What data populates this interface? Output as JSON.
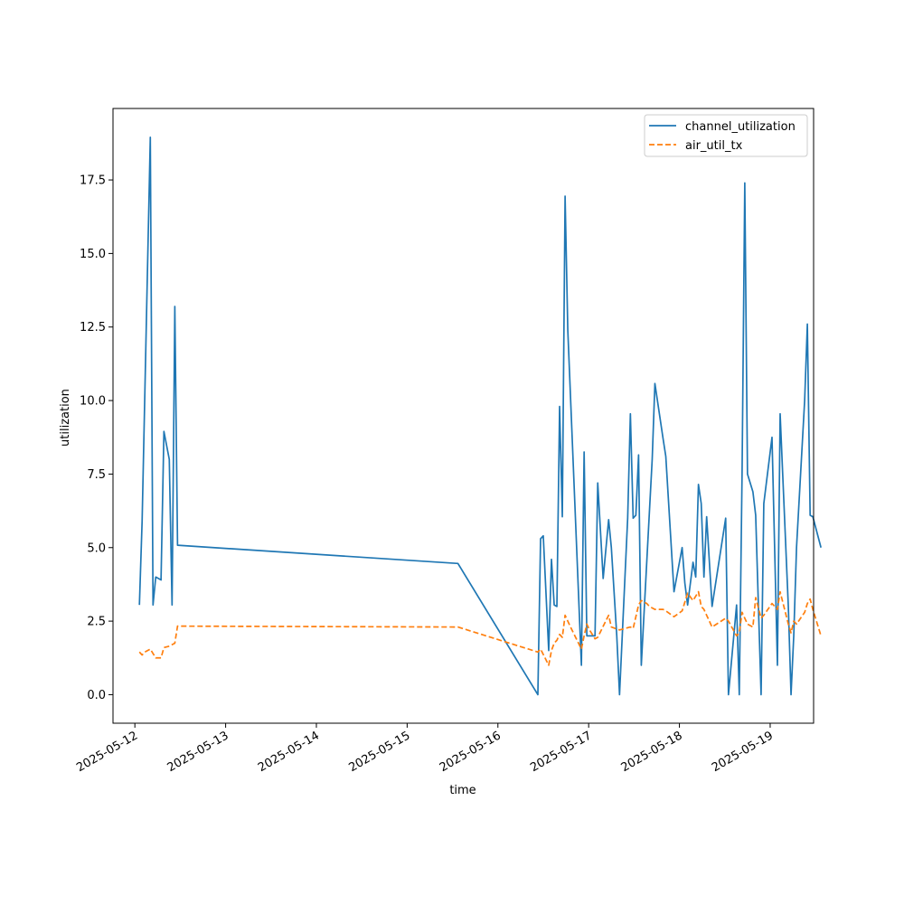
{
  "chart_data": {
    "type": "line",
    "title": "",
    "xlabel": "time",
    "ylabel": "utilization",
    "xlim": [
      "2025-05-11 18:13",
      "2025-05-19 11:29"
    ],
    "ylim": [
      -0.97,
      19.93
    ],
    "x_ticks": [
      "2025-05-12",
      "2025-05-13",
      "2025-05-14",
      "2025-05-15",
      "2025-05-16",
      "2025-05-17",
      "2025-05-18",
      "2025-05-19"
    ],
    "y_ticks": [
      "0.0",
      "2.5",
      "5.0",
      "7.5",
      "10.0",
      "12.5",
      "15.0",
      "17.5"
    ],
    "grid": false,
    "legend_position": "upper right",
    "series": [
      {
        "name": "channel_utilization",
        "color": "#1f77b4",
        "style": "solid",
        "points": [
          [
            "2025-05-12 01:12",
            3.05
          ],
          [
            "2025-05-12 01:55",
            5.9
          ],
          [
            "2025-05-12 04:05",
            18.95
          ],
          [
            "2025-05-12 04:48",
            3.05
          ],
          [
            "2025-05-12 05:31",
            4.0
          ],
          [
            "2025-05-12 06:55",
            3.9
          ],
          [
            "2025-05-12 07:41",
            8.95
          ],
          [
            "2025-05-12 09:06",
            8.0
          ],
          [
            "2025-05-12 09:50",
            3.05
          ],
          [
            "2025-05-12 10:34",
            13.2
          ],
          [
            "2025-05-12 11:17",
            5.08
          ],
          [
            "2025-05-15 13:26",
            4.46
          ],
          [
            "2025-05-16 10:34",
            0.0
          ],
          [
            "2025-05-16 11:17",
            5.3
          ],
          [
            "2025-05-16 12:00",
            5.4
          ],
          [
            "2025-05-16 13:26",
            1.5
          ],
          [
            "2025-05-16 14:10",
            4.6
          ],
          [
            "2025-05-16 14:53",
            3.05
          ],
          [
            "2025-05-16 15:36",
            3.0
          ],
          [
            "2025-05-16 16:19",
            9.8
          ],
          [
            "2025-05-16 17:02",
            6.05
          ],
          [
            "2025-05-16 17:46",
            16.95
          ],
          [
            "2025-05-16 18:29",
            12.4
          ],
          [
            "2025-05-16 22:05",
            1.0
          ],
          [
            "2025-05-16 22:48",
            8.25
          ],
          [
            "2025-05-16 23:31",
            2.0
          ],
          [
            "2025-05-17 01:41",
            2.0
          ],
          [
            "2025-05-17 02:24",
            7.2
          ],
          [
            "2025-05-17 03:50",
            3.95
          ],
          [
            "2025-05-17 05:17",
            5.95
          ],
          [
            "2025-05-17 06:00",
            5.0
          ],
          [
            "2025-05-17 07:26",
            2.0
          ],
          [
            "2025-05-17 08:10",
            0.0
          ],
          [
            "2025-05-17 10:19",
            6.0
          ],
          [
            "2025-05-17 11:02",
            9.55
          ],
          [
            "2025-05-17 11:46",
            6.0
          ],
          [
            "2025-05-17 12:29",
            6.1
          ],
          [
            "2025-05-17 13:12",
            8.15
          ],
          [
            "2025-05-17 13:55",
            1.0
          ],
          [
            "2025-05-17 16:48",
            8.0
          ],
          [
            "2025-05-17 17:31",
            10.58
          ],
          [
            "2025-05-17 19:41",
            8.7
          ],
          [
            "2025-05-17 20:24",
            8.1
          ],
          [
            "2025-05-17 22:34",
            3.5
          ],
          [
            "2025-05-18 00:43",
            5.0
          ],
          [
            "2025-05-18 01:26",
            3.8
          ],
          [
            "2025-05-18 02:10",
            3.05
          ],
          [
            "2025-05-18 03:36",
            4.5
          ],
          [
            "2025-05-18 04:19",
            4.0
          ],
          [
            "2025-05-18 05:02",
            7.15
          ],
          [
            "2025-05-18 05:46",
            6.5
          ],
          [
            "2025-05-18 06:29",
            4.0
          ],
          [
            "2025-05-18 07:12",
            6.05
          ],
          [
            "2025-05-18 08:38",
            3.0
          ],
          [
            "2025-05-18 12:14",
            6.0
          ],
          [
            "2025-05-18 12:58",
            0.0
          ],
          [
            "2025-05-18 15:07",
            3.05
          ],
          [
            "2025-05-18 15:50",
            0.0
          ],
          [
            "2025-05-18 16:34",
            7.5
          ],
          [
            "2025-05-18 17:17",
            17.4
          ],
          [
            "2025-05-18 18:00",
            7.5
          ],
          [
            "2025-05-18 19:26",
            6.9
          ],
          [
            "2025-05-18 20:10",
            6.1
          ],
          [
            "2025-05-18 21:36",
            0.0
          ],
          [
            "2025-05-18 22:19",
            6.5
          ],
          [
            "2025-05-19 00:29",
            8.75
          ],
          [
            "2025-05-19 01:55",
            1.0
          ],
          [
            "2025-05-19 02:38",
            9.55
          ],
          [
            "2025-05-19 04:48",
            3.0
          ],
          [
            "2025-05-19 05:31",
            0.0
          ],
          [
            "2025-05-19 06:14",
            2.0
          ],
          [
            "2025-05-19 06:58",
            5.0
          ],
          [
            "2025-05-19 09:07",
            10.0
          ],
          [
            "2025-05-19 09:50",
            12.6
          ],
          [
            "2025-05-19 10:34",
            6.1
          ],
          [
            "2025-05-19 11:17",
            6.05
          ],
          [
            "2025-05-19 13:26",
            5.0
          ]
        ]
      },
      {
        "name": "air_util_tx",
        "color": "#ff7f0e",
        "style": "dashed",
        "points": [
          [
            "2025-05-12 01:12",
            1.45
          ],
          [
            "2025-05-12 01:55",
            1.35
          ],
          [
            "2025-05-12 02:38",
            1.45
          ],
          [
            "2025-05-12 03:22",
            1.5
          ],
          [
            "2025-05-12 04:05",
            1.55
          ],
          [
            "2025-05-12 04:48",
            1.4
          ],
          [
            "2025-05-12 05:31",
            1.25
          ],
          [
            "2025-05-12 06:55",
            1.25
          ],
          [
            "2025-05-12 07:41",
            1.6
          ],
          [
            "2025-05-12 09:06",
            1.65
          ],
          [
            "2025-05-12 09:50",
            1.7
          ],
          [
            "2025-05-12 10:34",
            1.75
          ],
          [
            "2025-05-12 11:17",
            2.33
          ],
          [
            "2025-05-15 13:26",
            2.3
          ],
          [
            "2025-05-16 10:34",
            1.45
          ],
          [
            "2025-05-16 11:17",
            1.55
          ],
          [
            "2025-05-16 13:26",
            1.0
          ],
          [
            "2025-05-16 14:10",
            1.5
          ],
          [
            "2025-05-16 14:53",
            1.75
          ],
          [
            "2025-05-16 15:36",
            1.85
          ],
          [
            "2025-05-16 16:19",
            2.05
          ],
          [
            "2025-05-16 17:02",
            1.95
          ],
          [
            "2025-05-16 17:46",
            2.7
          ],
          [
            "2025-05-16 19:12",
            2.3
          ],
          [
            "2025-05-16 22:05",
            1.55
          ],
          [
            "2025-05-16 22:48",
            2.0
          ],
          [
            "2025-05-16 23:31",
            2.4
          ],
          [
            "2025-05-17 00:14",
            2.2
          ],
          [
            "2025-05-17 01:41",
            1.9
          ],
          [
            "2025-05-17 02:24",
            1.95
          ],
          [
            "2025-05-17 05:17",
            2.7
          ],
          [
            "2025-05-17 06:00",
            2.3
          ],
          [
            "2025-05-17 08:10",
            2.2
          ],
          [
            "2025-05-17 11:02",
            2.3
          ],
          [
            "2025-05-17 11:46",
            2.25
          ],
          [
            "2025-05-17 13:12",
            3.05
          ],
          [
            "2025-05-17 13:55",
            3.2
          ],
          [
            "2025-05-17 15:22",
            3.1
          ],
          [
            "2025-05-17 16:05",
            3.0
          ],
          [
            "2025-05-17 16:48",
            2.95
          ],
          [
            "2025-05-17 17:31",
            2.9
          ],
          [
            "2025-05-17 19:41",
            2.9
          ],
          [
            "2025-05-17 20:24",
            2.85
          ],
          [
            "2025-05-17 22:34",
            2.65
          ],
          [
            "2025-05-18 00:43",
            2.85
          ],
          [
            "2025-05-18 02:10",
            3.45
          ],
          [
            "2025-05-18 03:36",
            3.2
          ],
          [
            "2025-05-18 05:02",
            3.5
          ],
          [
            "2025-05-18 05:46",
            3.0
          ],
          [
            "2025-05-18 06:29",
            2.9
          ],
          [
            "2025-05-18 08:38",
            2.3
          ],
          [
            "2025-05-18 12:14",
            2.6
          ],
          [
            "2025-05-18 12:58",
            2.5
          ],
          [
            "2025-05-18 15:07",
            2.0
          ],
          [
            "2025-05-18 15:50",
            2.1
          ],
          [
            "2025-05-18 16:34",
            2.8
          ],
          [
            "2025-05-18 17:17",
            2.6
          ],
          [
            "2025-05-18 18:00",
            2.4
          ],
          [
            "2025-05-18 19:26",
            2.3
          ],
          [
            "2025-05-18 20:10",
            3.3
          ],
          [
            "2025-05-18 21:36",
            2.6
          ],
          [
            "2025-05-18 22:19",
            2.7
          ],
          [
            "2025-05-19 00:29",
            3.1
          ],
          [
            "2025-05-19 01:55",
            2.9
          ],
          [
            "2025-05-19 02:38",
            3.5
          ],
          [
            "2025-05-19 04:48",
            2.4
          ],
          [
            "2025-05-19 05:31",
            2.1
          ],
          [
            "2025-05-19 06:14",
            2.5
          ],
          [
            "2025-05-19 06:58",
            2.4
          ],
          [
            "2025-05-19 09:07",
            2.8
          ],
          [
            "2025-05-19 09:50",
            3.1
          ],
          [
            "2025-05-19 10:34",
            3.25
          ],
          [
            "2025-05-19 11:17",
            2.9
          ],
          [
            "2025-05-19 13:26",
            2.0
          ]
        ]
      }
    ]
  }
}
